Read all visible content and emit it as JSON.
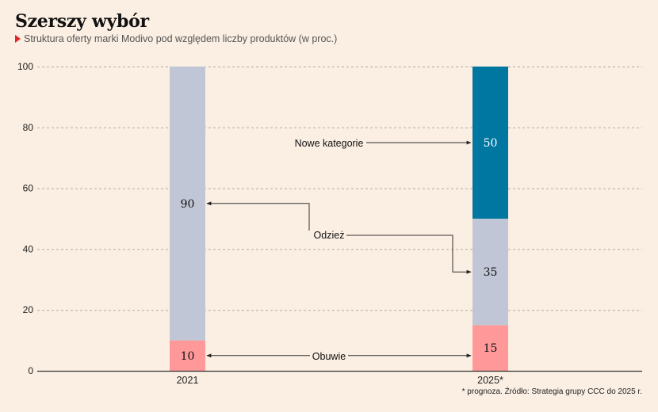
{
  "title": "Szerszy wybór",
  "subtitle": "Struktura oferty marki Modivo pod względem liczby produktów (w proc.)",
  "footnote": "* prognoza. Źródło: Strategia grupy CCC do 2025 r.",
  "colors": {
    "background": "#fbeee2",
    "obuwie": "#ff9999",
    "odziez": "#c1c6d6",
    "nowe_kategorie": "#0077a1",
    "accent": "#e0262b"
  },
  "chart_data": {
    "type": "bar",
    "stacked": true,
    "categories": [
      "2021",
      "2025*"
    ],
    "series": [
      {
        "name": "Obuwie",
        "values": [
          10,
          15
        ]
      },
      {
        "name": "Odzież",
        "values": [
          90,
          35
        ]
      },
      {
        "name": "Nowe kategorie",
        "values": [
          0,
          50
        ]
      }
    ],
    "ylim": [
      0,
      100
    ],
    "yticks": [
      0,
      20,
      40,
      60,
      80,
      100
    ],
    "grid": true,
    "legend": "annotations"
  }
}
